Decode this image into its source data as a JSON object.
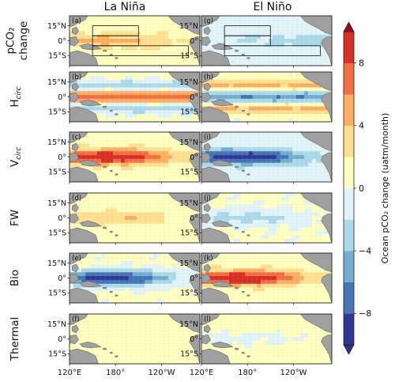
{
  "chart_data": {
    "type": "heatmap",
    "title": "",
    "columns": [
      {
        "id": "lanina",
        "title": "La Niña"
      },
      {
        "id": "elnino",
        "title": "El Niño"
      }
    ],
    "rows": [
      {
        "id": "pco2",
        "label_lines": [
          "pCO₂",
          "change"
        ],
        "panels": [
          "(a)",
          "(g)"
        ]
      },
      {
        "id": "hcirc",
        "label_main": "H",
        "label_sub": "circ",
        "panels": [
          "(b)",
          "(h)"
        ]
      },
      {
        "id": "vcirc",
        "label_main": "V",
        "label_sub": "circ",
        "panels": [
          "(c)",
          "(i)"
        ]
      },
      {
        "id": "fw",
        "label_main": "FW",
        "label_sub": "",
        "panels": [
          "(d)",
          "(j)"
        ]
      },
      {
        "id": "bio",
        "label_main": "Bio",
        "label_sub": "",
        "panels": [
          "(e)",
          "(k)"
        ]
      },
      {
        "id": "thermal",
        "label_main": "Thermal",
        "label_sub": "",
        "panels": [
          "(f)",
          "(l)"
        ]
      }
    ],
    "lat_ticks": [
      "15°N",
      "0°",
      "15°S"
    ],
    "lon_ticks": [
      "120°E",
      "180°",
      "120°W"
    ],
    "lon_range_deg": [
      120,
      290
    ],
    "lat_range_deg": [
      -25,
      25
    ],
    "lat_tick_values": [
      15,
      0,
      -15
    ],
    "lon_tick_values": [
      120,
      180,
      240
    ],
    "boxes_deg": [
      {
        "lon": [
          150,
          210
        ],
        "lat": [
          -5,
          5
        ]
      },
      {
        "lon": [
          150,
          210
        ],
        "lat": [
          5,
          15
        ]
      },
      {
        "lon": [
          150,
          275
        ],
        "lat": [
          -15,
          -5
        ]
      }
    ],
    "colorbar": {
      "label": "Ocean pCO₂ change (uatm/month)",
      "ticks": [
        "8",
        "4",
        "0",
        "−4",
        "−8"
      ],
      "tick_values": [
        8,
        4,
        0,
        -4,
        -8
      ],
      "range": [
        -10,
        10
      ],
      "extend": "both",
      "colors_bottom_to_top": [
        "#313695",
        "#4575b4",
        "#74add1",
        "#abd9e9",
        "#e0f3f8",
        "#ffffbf",
        "#fee090",
        "#fdae61",
        "#f46d43",
        "#d73027"
      ]
    },
    "fields": {
      "pco2": [
        {
          "bg": 1.1,
          "eq": 3.5,
          "dir": "west"
        },
        {
          "bg": -0.6,
          "eq": -2.8,
          "dir": "east"
        }
      ],
      "hcirc": [
        {
          "bg": 0.8,
          "eq": 6.5,
          "dir": "dipole"
        },
        {
          "bg": 0.4,
          "eq": -6.5,
          "dir": "dipole"
        }
      ],
      "vcirc": [
        {
          "bg": 1.1,
          "eq": 9.0,
          "dir": "west"
        },
        {
          "bg": -0.8,
          "eq": -9.0,
          "dir": "west"
        }
      ],
      "fw": [
        {
          "bg": 0.7,
          "eq": 3.2,
          "dir": "west"
        },
        {
          "bg": 0.3,
          "eq": -3.2,
          "dir": "west"
        }
      ],
      "bio": [
        {
          "bg": 0.4,
          "eq": -9.5,
          "dir": "west"
        },
        {
          "bg": 0.9,
          "eq": 9.5,
          "dir": "west"
        }
      ],
      "thermal": [
        {
          "bg": 0.9,
          "eq": 0.3,
          "dir": "west"
        },
        {
          "bg": 0.8,
          "eq": -1.4,
          "dir": "west"
        }
      ]
    }
  }
}
